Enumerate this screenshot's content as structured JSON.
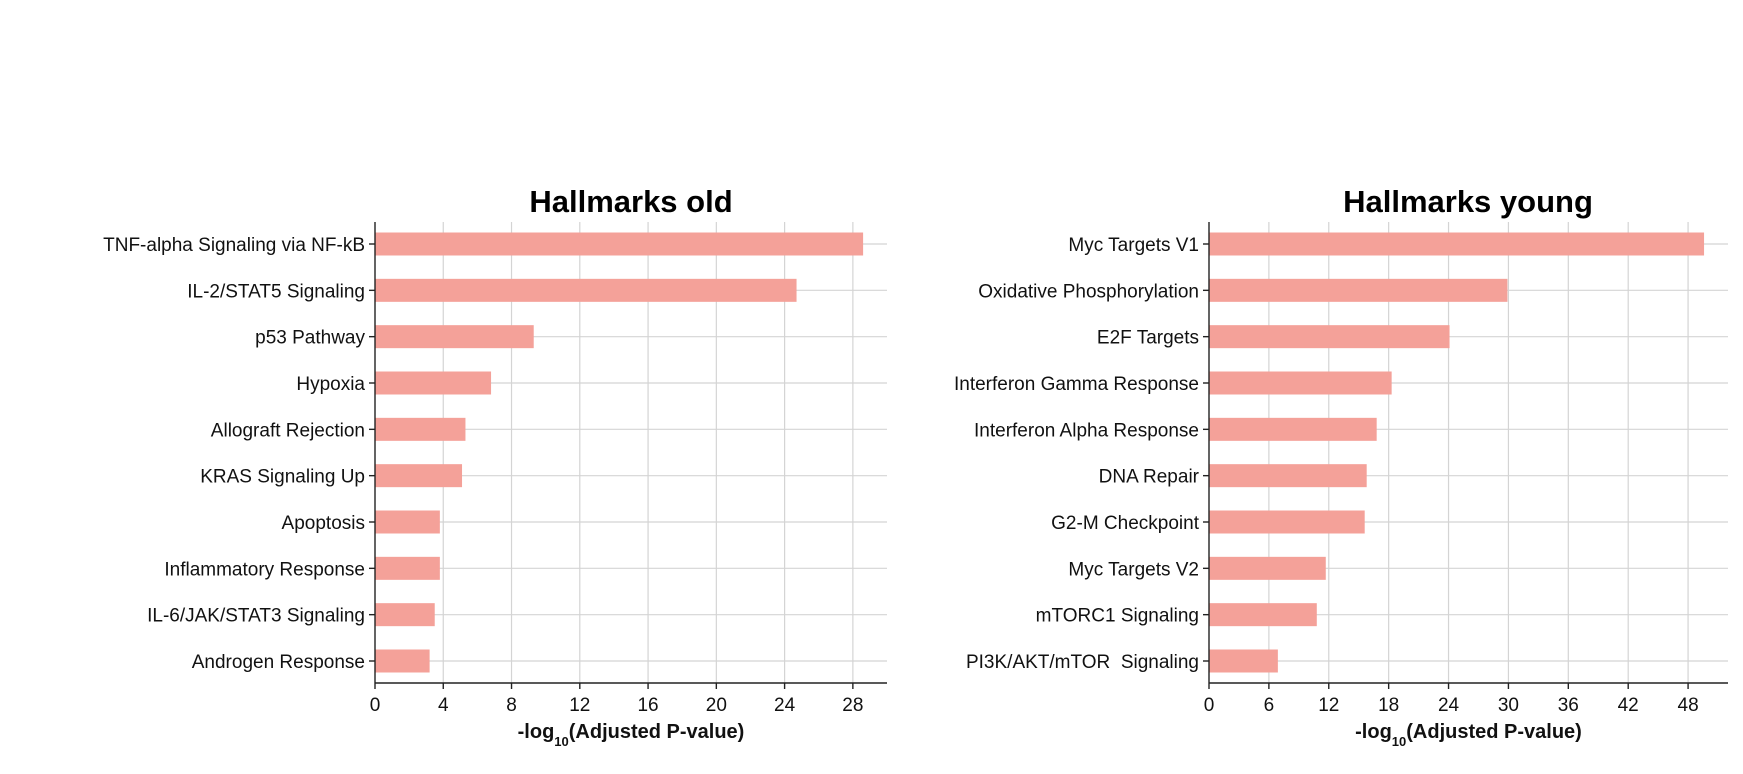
{
  "chart_data": [
    {
      "type": "bar",
      "orientation": "horizontal",
      "title": "Hallmarks old",
      "xlabel": "-log10(Adjusted P-value)",
      "xlabel_parts": {
        "prefix": "-log",
        "sub": "10",
        "suffix": "(Adjusted P-value)"
      },
      "categories": [
        "TNF-alpha Signaling via NF-kB",
        "IL-2/STAT5 Signaling",
        "p53 Pathway",
        "Hypoxia",
        "Allograft Rejection",
        "KRAS Signaling Up",
        "Apoptosis",
        "Inflammatory Response",
        "IL-6/JAK/STAT3 Signaling",
        "Androgen Response"
      ],
      "values": [
        28.6,
        24.7,
        9.3,
        6.8,
        5.3,
        5.1,
        3.8,
        3.8,
        3.5,
        3.2
      ],
      "xticks": [
        0,
        4,
        8,
        12,
        16,
        20,
        24,
        28
      ],
      "xlim": [
        0,
        30
      ],
      "grid": true,
      "color": "#f4a199"
    },
    {
      "type": "bar",
      "orientation": "horizontal",
      "title": "Hallmarks young",
      "xlabel": "-log10(Adjusted P-value)",
      "xlabel_parts": {
        "prefix": "-log",
        "sub": "10",
        "suffix": "(Adjusted P-value)"
      },
      "categories": [
        "Myc Targets V1",
        "Oxidative Phosphorylation",
        "E2F Targets",
        "Interferon Gamma Response",
        "Interferon Alpha Response",
        "DNA Repair",
        "G2-M Checkpoint",
        "Myc Targets V2",
        "mTORC1 Signaling",
        "PI3K/AKT/mTOR  Signaling"
      ],
      "values": [
        49.6,
        29.9,
        24.1,
        18.3,
        16.8,
        15.8,
        15.6,
        11.7,
        10.8,
        6.9
      ],
      "xticks": [
        0,
        6,
        12,
        18,
        24,
        30,
        36,
        42,
        48
      ],
      "xlim": [
        0,
        52
      ],
      "grid": true,
      "color": "#f4a199"
    }
  ]
}
